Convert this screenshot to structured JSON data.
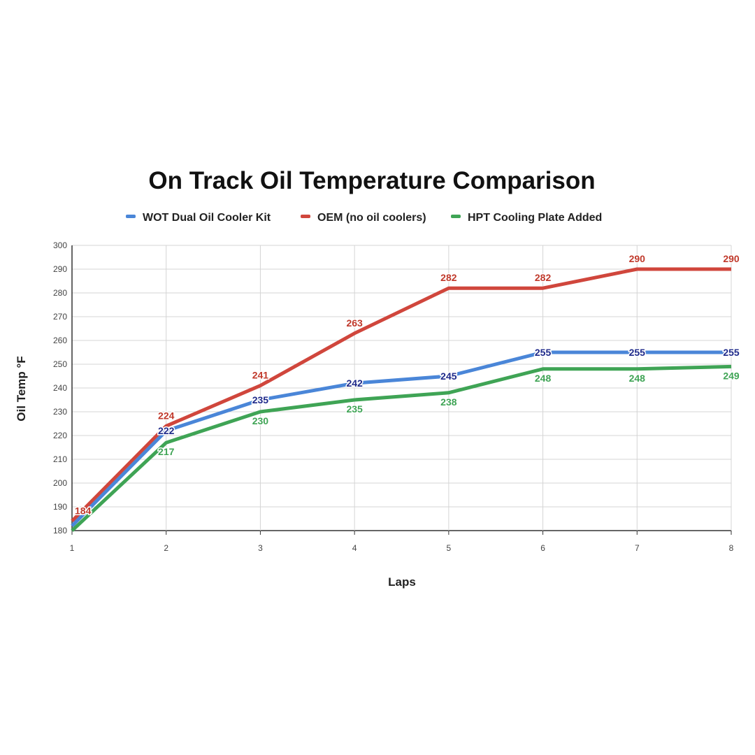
{
  "chart_data": {
    "type": "line",
    "title": "On Track Oil Temperature Comparison",
    "xlabel": "Laps",
    "ylabel": "Oil Temp °F",
    "x": [
      1,
      2,
      3,
      4,
      5,
      6,
      7,
      8
    ],
    "ylim": [
      180,
      300
    ],
    "yticks": [
      180,
      190,
      200,
      210,
      220,
      230,
      240,
      250,
      260,
      270,
      280,
      290,
      300
    ],
    "grid": true,
    "legend_position": "top",
    "series": [
      {
        "name": "WOT Dual Oil Cooler Kit",
        "color": "#4a86d8",
        "label_color": "#1f2a8a",
        "values": [
          182,
          222,
          235,
          242,
          245,
          255,
          255,
          255
        ],
        "labels": [
          null,
          "222",
          "235",
          "242",
          "245",
          "255",
          "255",
          "255"
        ]
      },
      {
        "name": "OEM (no oil coolers)",
        "color": "#d0463c",
        "label_color": "#c0392b",
        "values": [
          184,
          224,
          241,
          263,
          282,
          282,
          290,
          290
        ],
        "labels": [
          "184",
          "224",
          "241",
          "263",
          "282",
          "282",
          "290",
          "290"
        ]
      },
      {
        "name": "HPT Cooling Plate Added",
        "color": "#3fa455",
        "label_color": "#3fa455",
        "values": [
          180,
          217,
          230,
          235,
          238,
          248,
          248,
          249
        ],
        "labels": [
          null,
          "217",
          "230",
          "235",
          "238",
          "248",
          "248",
          "249"
        ]
      }
    ]
  }
}
